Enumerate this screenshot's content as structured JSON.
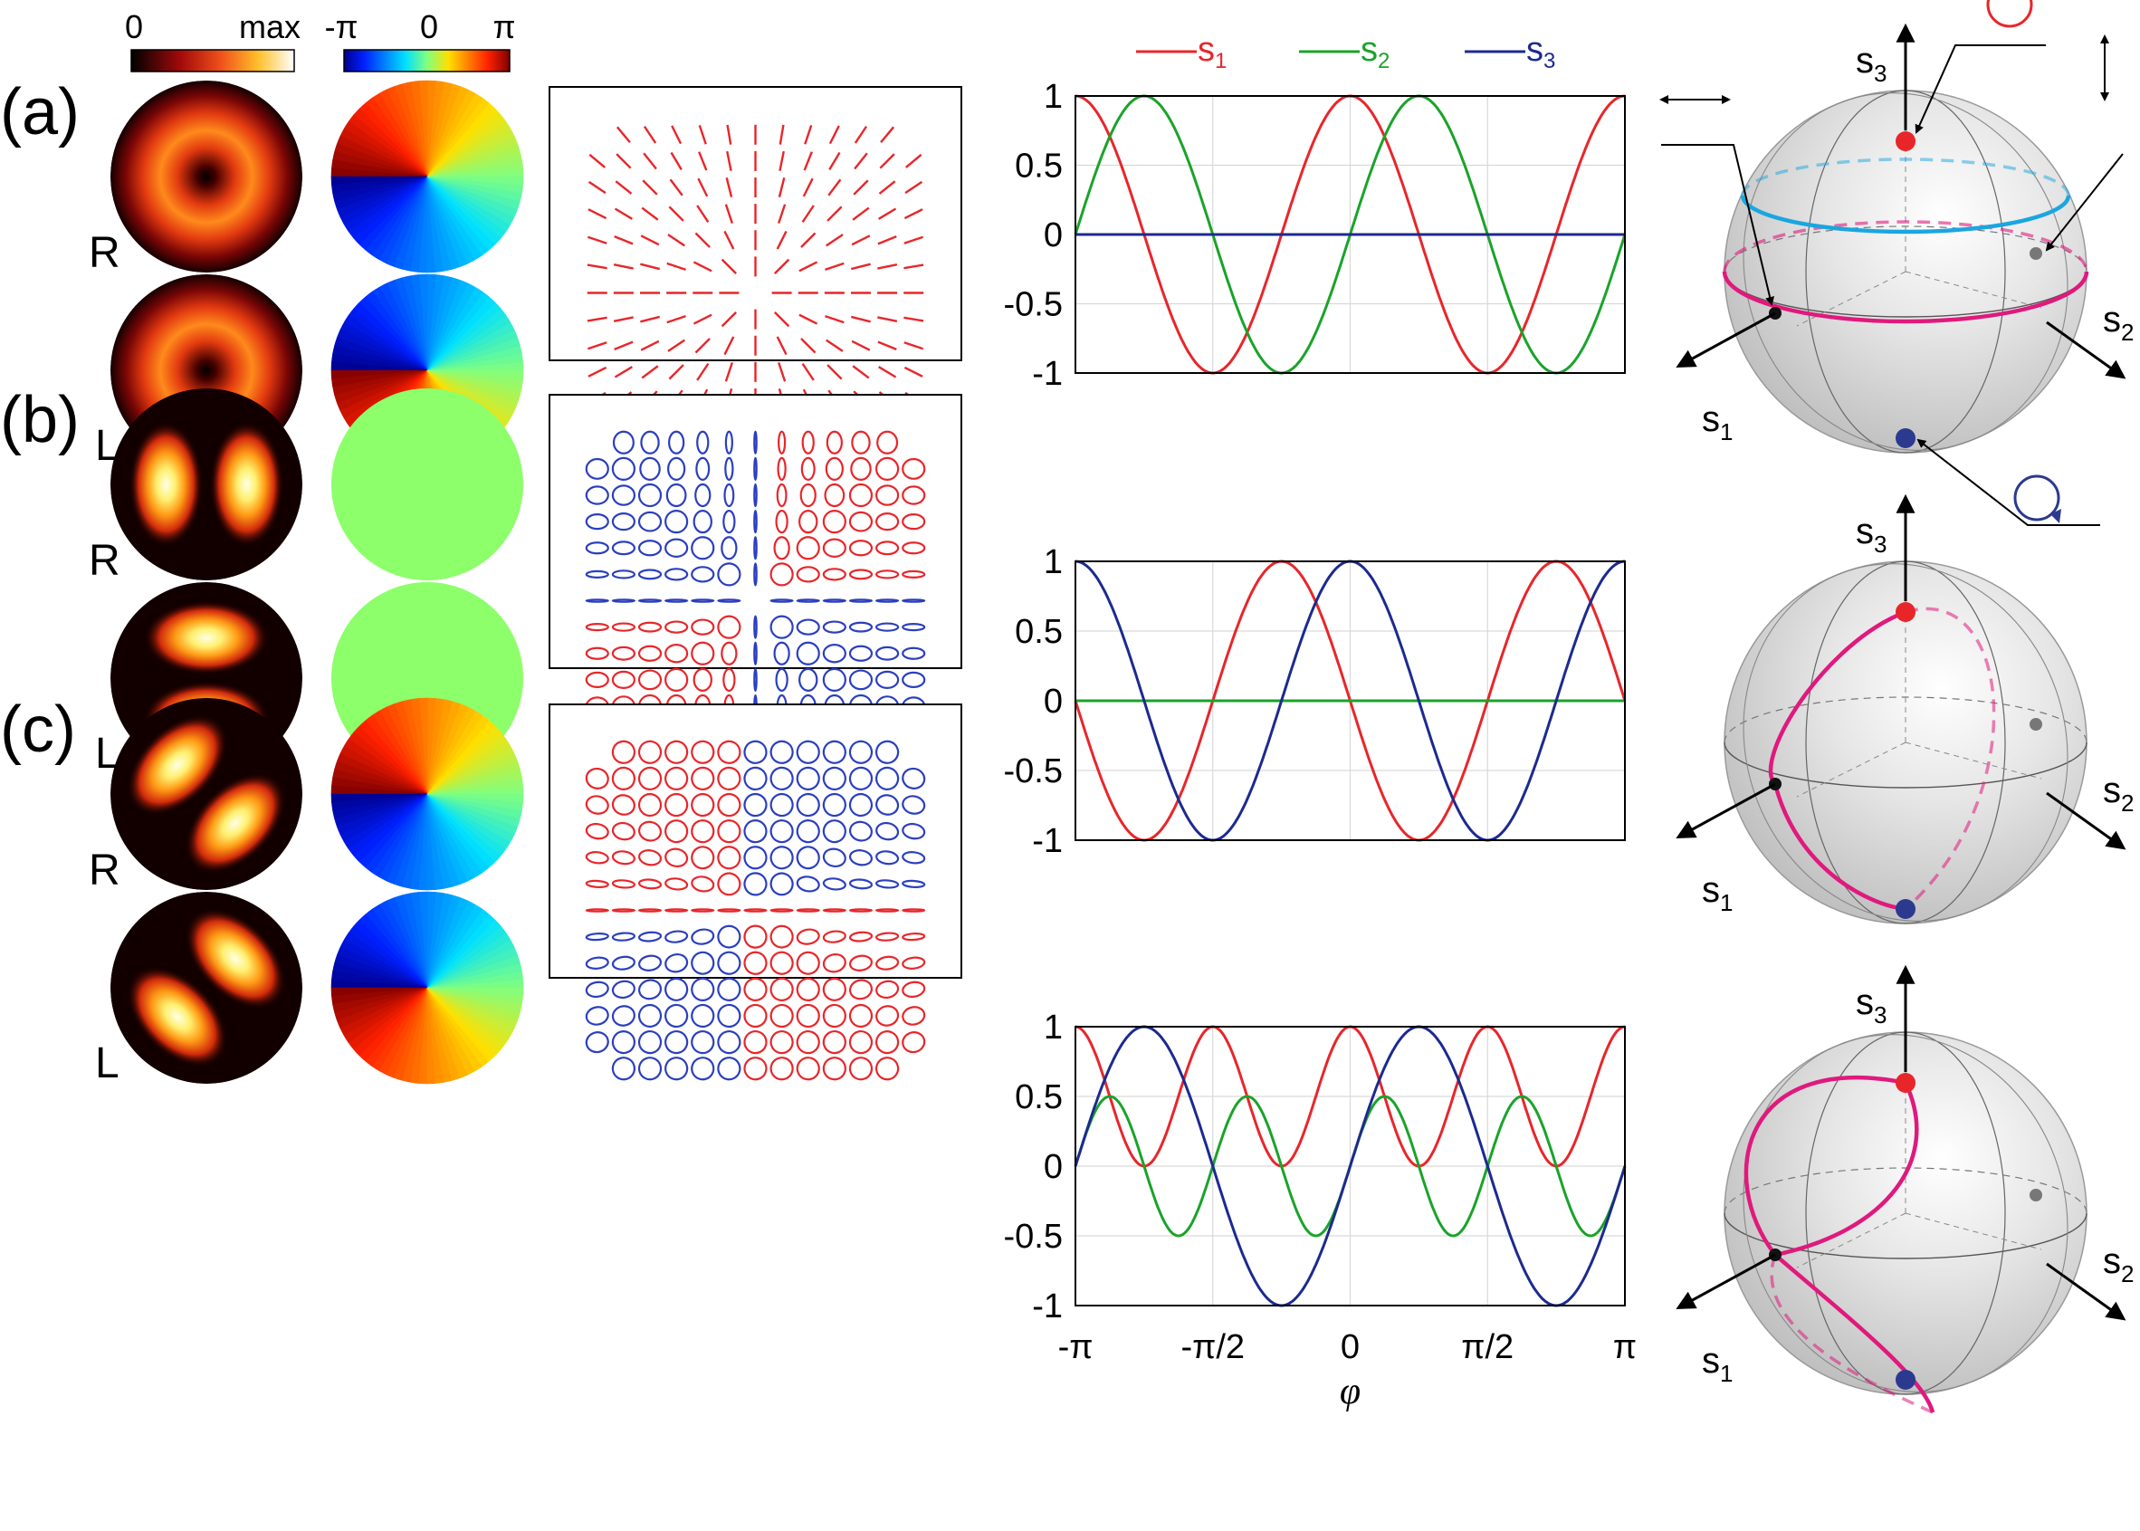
{
  "colorbars": {
    "intensity": {
      "min_label": "0",
      "max_label": "max"
    },
    "phase": {
      "min_label": "-π",
      "mid_label": "0",
      "max_label": "π"
    }
  },
  "rows": [
    {
      "label": "(a)",
      "r_label": "R",
      "l_label": "L",
      "r_intensity": "donut",
      "l_intensity": "donut",
      "r_phase": "vortex-ccw",
      "l_phase": "vortex-cw",
      "polarization": "radial-lines"
    },
    {
      "label": "(b)",
      "r_label": "R",
      "l_label": "L",
      "r_intensity": "two-lobes-horizontal",
      "l_intensity": "two-lobes-vertical",
      "r_phase": "uniform-green",
      "l_phase": "uniform-green",
      "polarization": "ellipses-quadrant"
    },
    {
      "label": "(c)",
      "r_label": "R",
      "l_label": "L",
      "r_intensity": "two-lobes-diagonal",
      "l_intensity": "two-lobes-antidiagonal",
      "r_phase": "vortex-ccw",
      "l_phase": "vortex-cw",
      "polarization": "ellipses-halves"
    }
  ],
  "legend": [
    {
      "name": "s",
      "sub": "1",
      "color": "#e8262a"
    },
    {
      "name": "s",
      "sub": "2",
      "color": "#1aa32a"
    },
    {
      "name": "s",
      "sub": "3",
      "color": "#1c2a8f"
    }
  ],
  "chart_data": [
    {
      "type": "line",
      "panel": "(a)",
      "x_domain": [
        "-π",
        "π"
      ],
      "ylim": [
        -1,
        1
      ],
      "ytick_labels": [
        "1",
        "0.5",
        "0",
        "-0.5",
        "-1"
      ],
      "grid": true,
      "series": [
        {
          "name": "s1",
          "expression": "cos(2φ)",
          "color": "#e8262a"
        },
        {
          "name": "s2",
          "expression": "sin(2φ)",
          "color": "#1aa32a"
        },
        {
          "name": "s3",
          "expression": "0",
          "color": "#1c2a8f"
        }
      ]
    },
    {
      "type": "line",
      "panel": "(b)",
      "x_domain": [
        "-π",
        "π"
      ],
      "ylim": [
        -1,
        1
      ],
      "ytick_labels": [
        "1",
        "0.5",
        "0",
        "-0.5",
        "-1"
      ],
      "grid": true,
      "series": [
        {
          "name": "s1",
          "expression": "-sin(2φ)",
          "color": "#e8262a"
        },
        {
          "name": "s2",
          "expression": "0",
          "color": "#1aa32a"
        },
        {
          "name": "s3",
          "expression": "cos(2φ)",
          "color": "#1c2a8f"
        }
      ]
    },
    {
      "type": "line",
      "panel": "(c)",
      "x_domain": [
        "-π",
        "π"
      ],
      "ylim": [
        -1,
        1
      ],
      "ytick_labels": [
        "1",
        "0.5",
        "0",
        "-0.5",
        "-1"
      ],
      "xtick_labels": [
        "-π",
        "-π/2",
        "0",
        "π/2",
        "π"
      ],
      "xlabel": "φ",
      "grid": true,
      "series": [
        {
          "name": "s1",
          "expression": "cos²(2φ)",
          "color": "#e8262a"
        },
        {
          "name": "s2",
          "expression": "sin(2φ)cos(2φ)",
          "color": "#1aa32a"
        },
        {
          "name": "s3",
          "expression": "sin(2φ)",
          "color": "#1c2a8f"
        }
      ]
    }
  ],
  "spheres": {
    "axis_labels": {
      "s1": "s",
      "s2": "s",
      "s3": "s",
      "sub1": "1",
      "sub2": "2",
      "sub3": "3"
    },
    "colors": {
      "equator": "#e0197d",
      "latitude": "#1aa6e0",
      "north": "#e8262a",
      "south": "#2b3a8f",
      "dot": "#111111"
    }
  }
}
